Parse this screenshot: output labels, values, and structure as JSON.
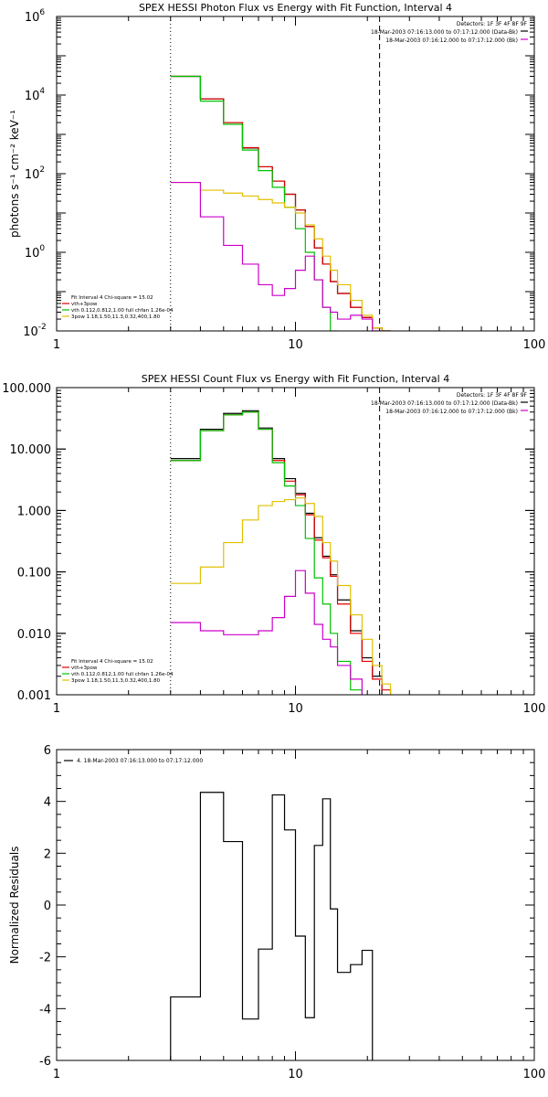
{
  "chart_data": [
    {
      "type": "line",
      "title": "SPEX HESSI Photon Flux vs Energy with Fit Function, Interval 4",
      "xlabel": "",
      "ylabel": "photons s⁻¹ cm⁻² keV⁻¹",
      "xscale": "log",
      "yscale": "log",
      "xlim": [
        1,
        100
      ],
      "ylim": [
        0.01,
        1000000
      ],
      "xticks": [
        {
          "v": 1,
          "label": "1"
        },
        {
          "v": 10,
          "label": "10"
        },
        {
          "v": 100,
          "label": "100"
        }
      ],
      "yticks": [
        {
          "v": 0.01,
          "base": "10",
          "exp": "-2"
        },
        {
          "v": 1,
          "base": "10",
          "exp": "0"
        },
        {
          "v": 100,
          "base": "10",
          "exp": "2"
        },
        {
          "v": 10000,
          "base": "10",
          "exp": "4"
        },
        {
          "v": 1000000,
          "base": "10",
          "exp": "6"
        }
      ],
      "vlines": [
        {
          "x": 3.0,
          "style": "dotted"
        },
        {
          "x": 22.5,
          "style": "dashed"
        }
      ],
      "info_lines": [
        "Detectors: 1F 3F 4F 8F 9F",
        "18-Mar-2003 07:16:13.000 to 07:17:12.000 (Data-Bk)",
        "18-Mar-2003 07:16:12.000 to 07:17:12.000 (Bk)"
      ],
      "info_legend": [
        {
          "color": "#000000"
        },
        {
          "color": "#cc00cc"
        }
      ],
      "fit_lines": [
        {
          "text": "Fit Interval  4   Chi-square = 15.02",
          "color": null
        },
        {
          "text": "vth+3pow",
          "color": "#e00000"
        },
        {
          "text": "vth 0.112,0.812,1.00  full chfan 1.26e-04",
          "color": "#00c000"
        },
        {
          "text": "3pow 1.18,1.50,11.3,0.32,400,1.80",
          "color": "#e0c000"
        }
      ],
      "edges": [
        3.0,
        4.0,
        5.0,
        6.0,
        7.0,
        8.0,
        9.0,
        10.0,
        11.0,
        12.0,
        13.0,
        14.0,
        15.0,
        17.0,
        19.0,
        21.0,
        23.0,
        25.0
      ],
      "series": [
        {
          "name": "data-bk",
          "color": "#000000",
          "values": [
            30000,
            8000,
            2000,
            450,
            150,
            65,
            30,
            12,
            4.5,
            1.3,
            0.5,
            0.18,
            0.09,
            0.04,
            0.022,
            0.012,
            0.01
          ]
        },
        {
          "name": "vth+3pow",
          "color": "#e00000",
          "values": [
            30000,
            8000,
            2000,
            460,
            150,
            65,
            30,
            12,
            4.5,
            1.3,
            0.5,
            0.18,
            0.09,
            0.04,
            0.022,
            0.012,
            0.01
          ]
        },
        {
          "name": "vth",
          "color": "#00c000",
          "values": [
            30000,
            7000,
            1800,
            400,
            120,
            45,
            14,
            4.0,
            1.0,
            0.2,
            0.04,
            0.01
          ]
        },
        {
          "name": "3pow",
          "color": "#e0c000",
          "values": [
            60,
            38,
            32,
            27,
            22,
            18,
            14,
            10,
            5.0,
            2.2,
            0.8,
            0.35,
            0.15,
            0.06,
            0.025,
            0.012,
            0.01
          ]
        },
        {
          "name": "bk",
          "color": "#cc00cc",
          "values": [
            60,
            8,
            1.5,
            0.5,
            0.15,
            0.08,
            0.12,
            0.35,
            0.8,
            0.2,
            0.04,
            0.03,
            0.02,
            0.025,
            0.02,
            0.01
          ]
        }
      ]
    },
    {
      "type": "line",
      "title": "SPEX HESSI Count Flux vs Energy with Fit Function, Interval 4",
      "xlabel": "",
      "ylabel": "",
      "xscale": "log",
      "yscale": "log",
      "xlim": [
        1,
        100
      ],
      "ylim": [
        0.001,
        100
      ],
      "xticks": [
        {
          "v": 1,
          "label": "1"
        },
        {
          "v": 10,
          "label": "10"
        },
        {
          "v": 100,
          "label": "100"
        }
      ],
      "yticks": [
        {
          "v": 0.001,
          "label": "0.001"
        },
        {
          "v": 0.01,
          "label": "0.010"
        },
        {
          "v": 0.1,
          "label": "0.100"
        },
        {
          "v": 1,
          "label": "1.000"
        },
        {
          "v": 10,
          "label": "10.000"
        },
        {
          "v": 100,
          "label": "100.000"
        }
      ],
      "vlines": [
        {
          "x": 3.0,
          "style": "dotted"
        },
        {
          "x": 22.5,
          "style": "dashed"
        }
      ],
      "info_lines": [
        "Detectors: 1F 3F 4F 8F 9F",
        "18-Mar-2003 07:16:13.000 to 07:17:12.000 (Data-Bk)",
        "18-Mar-2003 07:16:12.000 to 07:17:12.000 (Bk)"
      ],
      "info_legend": [
        {
          "color": "#000000"
        },
        {
          "color": "#cc00cc"
        }
      ],
      "fit_lines": [
        {
          "text": "Fit Interval  4   Chi-square = 15.02",
          "color": null
        },
        {
          "text": "vth+3pow",
          "color": "#e00000"
        },
        {
          "text": "vth 0.112,0.812,1.00  full chfan 1.26e-04",
          "color": "#00c000"
        },
        {
          "text": "3pow 1.18,1.50,11.3,0.32,400,1.80",
          "color": "#e0c000"
        }
      ],
      "edges": [
        3.0,
        4.0,
        5.0,
        6.0,
        7.0,
        8.0,
        9.0,
        10.0,
        11.0,
        12.0,
        13.0,
        14.0,
        15.0,
        17.0,
        19.0,
        21.0,
        23.0,
        25.0
      ],
      "series": [
        {
          "name": "data-bk",
          "color": "#000000",
          "values": [
            7.0,
            21.0,
            38.0,
            42.0,
            22.0,
            7.0,
            3.3,
            1.9,
            0.9,
            0.36,
            0.18,
            0.09,
            0.035,
            0.011,
            0.004,
            0.002
          ]
        },
        {
          "name": "vth+3pow",
          "color": "#e00000",
          "values": [
            6.5,
            20.0,
            36.0,
            40.0,
            21.0,
            6.5,
            3.0,
            1.8,
            0.85,
            0.33,
            0.17,
            0.085,
            0.03,
            0.01,
            0.0035,
            0.0018,
            0.0012
          ]
        },
        {
          "name": "vth",
          "color": "#00c000",
          "values": [
            6.5,
            20.0,
            36.0,
            40.0,
            21.0,
            6.0,
            2.5,
            1.2,
            0.35,
            0.08,
            0.03,
            0.01,
            0.0035,
            0.0012
          ]
        },
        {
          "name": "3pow",
          "color": "#e0c000",
          "values": [
            0.065,
            0.12,
            0.3,
            0.7,
            1.2,
            1.4,
            1.5,
            1.6,
            1.3,
            0.8,
            0.3,
            0.15,
            0.06,
            0.02,
            0.008,
            0.003,
            0.0015
          ]
        },
        {
          "name": "bk",
          "color": "#cc00cc",
          "values": [
            0.015,
            0.011,
            0.0095,
            0.0095,
            0.011,
            0.018,
            0.04,
            0.105,
            0.045,
            0.014,
            0.008,
            0.006,
            0.003,
            0.0018
          ]
        }
      ]
    },
    {
      "type": "line",
      "title": "",
      "xlabel": "",
      "ylabel": "Normalized Residuals",
      "xscale": "log",
      "yscale": "linear",
      "xlim": [
        1,
        100
      ],
      "ylim": [
        -6,
        6
      ],
      "xticks": [
        {
          "v": 1,
          "label": "1"
        },
        {
          "v": 10,
          "label": "10"
        },
        {
          "v": 100,
          "label": "100"
        }
      ],
      "yticks": [
        {
          "v": -6,
          "label": "-6"
        },
        {
          "v": -4,
          "label": "-4"
        },
        {
          "v": -2,
          "label": "-2"
        },
        {
          "v": 0,
          "label": "0"
        },
        {
          "v": 2,
          "label": "2"
        },
        {
          "v": 4,
          "label": "4"
        },
        {
          "v": 6,
          "label": "6"
        }
      ],
      "vlines": [],
      "info_lines": [],
      "info_legend": [],
      "fit_lines": [],
      "legend": [
        {
          "text": "4. 18-Mar-2003 07:16:13.000 to 07:17:12.000",
          "color": "#000000"
        }
      ],
      "edges": [
        3.0,
        4.0,
        5.0,
        6.0,
        7.0,
        8.0,
        9.0,
        10.0,
        11.0,
        12.0,
        13.0,
        14.0,
        15.0,
        17.0,
        19.0,
        21.0,
        23.0
      ],
      "start_drop": true,
      "series": [
        {
          "name": "residuals",
          "color": "#000000",
          "values": [
            -3.55,
            4.35,
            2.45,
            -4.4,
            -1.7,
            4.25,
            2.9,
            -1.2,
            -4.35,
            2.3,
            4.1,
            -0.15,
            -2.6,
            -2.3,
            -1.75
          ]
        }
      ]
    }
  ]
}
